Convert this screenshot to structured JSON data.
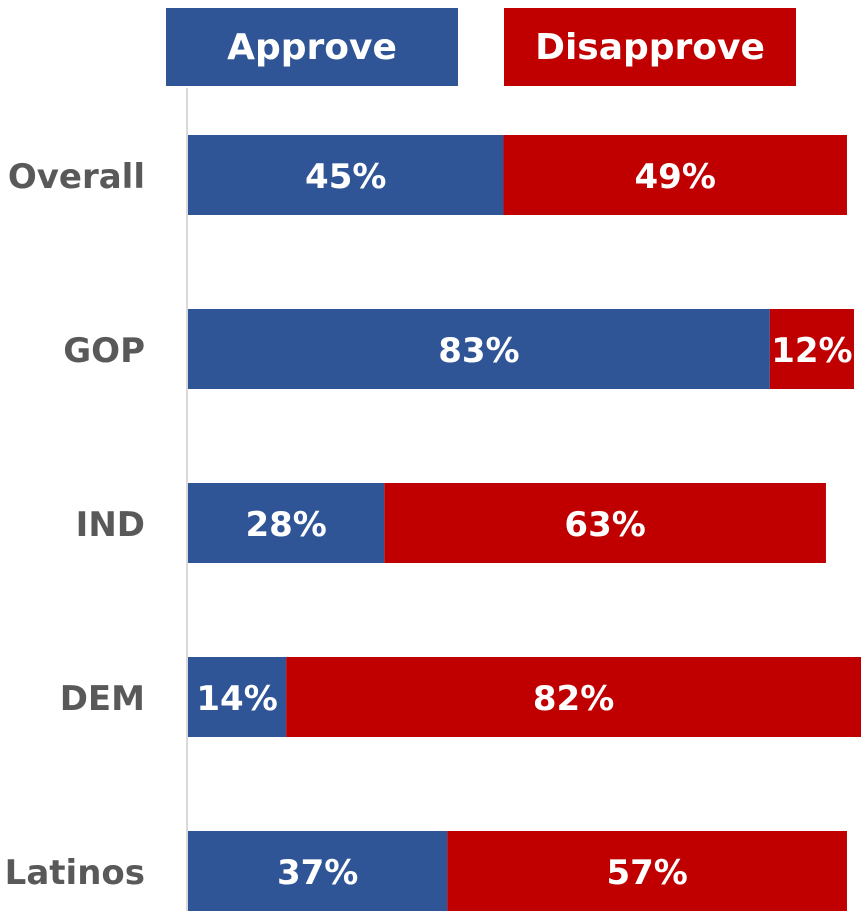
{
  "colors": {
    "approve": "#2F5597",
    "disapprove": "#C00000",
    "label": "#595959",
    "axis": "#D9D9D9"
  },
  "chart_data": {
    "type": "bar",
    "orientation": "horizontal",
    "stacked": true,
    "categories": [
      "Overall",
      "GOP",
      "IND",
      "DEM",
      "Latinos"
    ],
    "series": [
      {
        "name": "Approve",
        "values": [
          45,
          83,
          28,
          14,
          37
        ]
      },
      {
        "name": "Disapprove",
        "values": [
          49,
          12,
          63,
          82,
          57
        ]
      }
    ],
    "value_format": "{v}%",
    "xlim": [
      0,
      96
    ],
    "legend": "top",
    "grid": false
  }
}
